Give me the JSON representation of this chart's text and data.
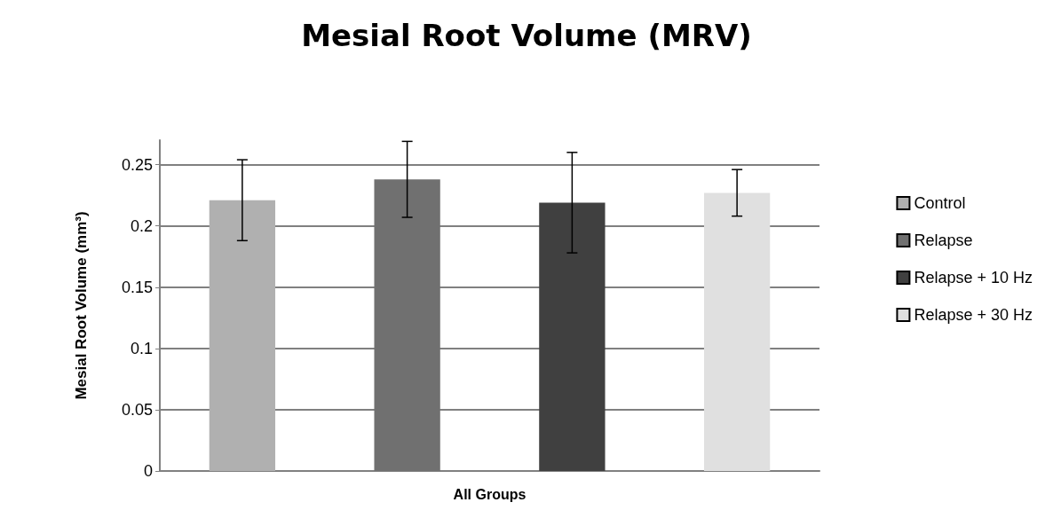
{
  "chart_data": {
    "type": "bar",
    "title": "Mesial Root Volume (MRV)",
    "xlabel": "All Groups",
    "ylabel": "Mesial Root Volume (mm³)",
    "categories": [
      null
    ],
    "series": [
      {
        "name": "Control",
        "color": "#b0b0b0",
        "values": [
          0.221
        ],
        "errors": [
          0.033
        ]
      },
      {
        "name": "Relapse",
        "color": "#707070",
        "values": [
          0.238
        ],
        "errors": [
          0.031
        ]
      },
      {
        "name": "Relapse + 10 Hz",
        "color": "#404040",
        "values": [
          0.219
        ],
        "errors": [
          0.041
        ]
      },
      {
        "name": "Relapse + 30 Hz",
        "color": "#e0e0e0",
        "values": [
          0.227
        ],
        "errors": [
          0.019
        ]
      }
    ],
    "ylim": [
      0,
      0.27
    ],
    "yticks": [
      0,
      0.05,
      0.1,
      0.15,
      0.2,
      0.25
    ],
    "grid": "y",
    "legend": "right"
  }
}
